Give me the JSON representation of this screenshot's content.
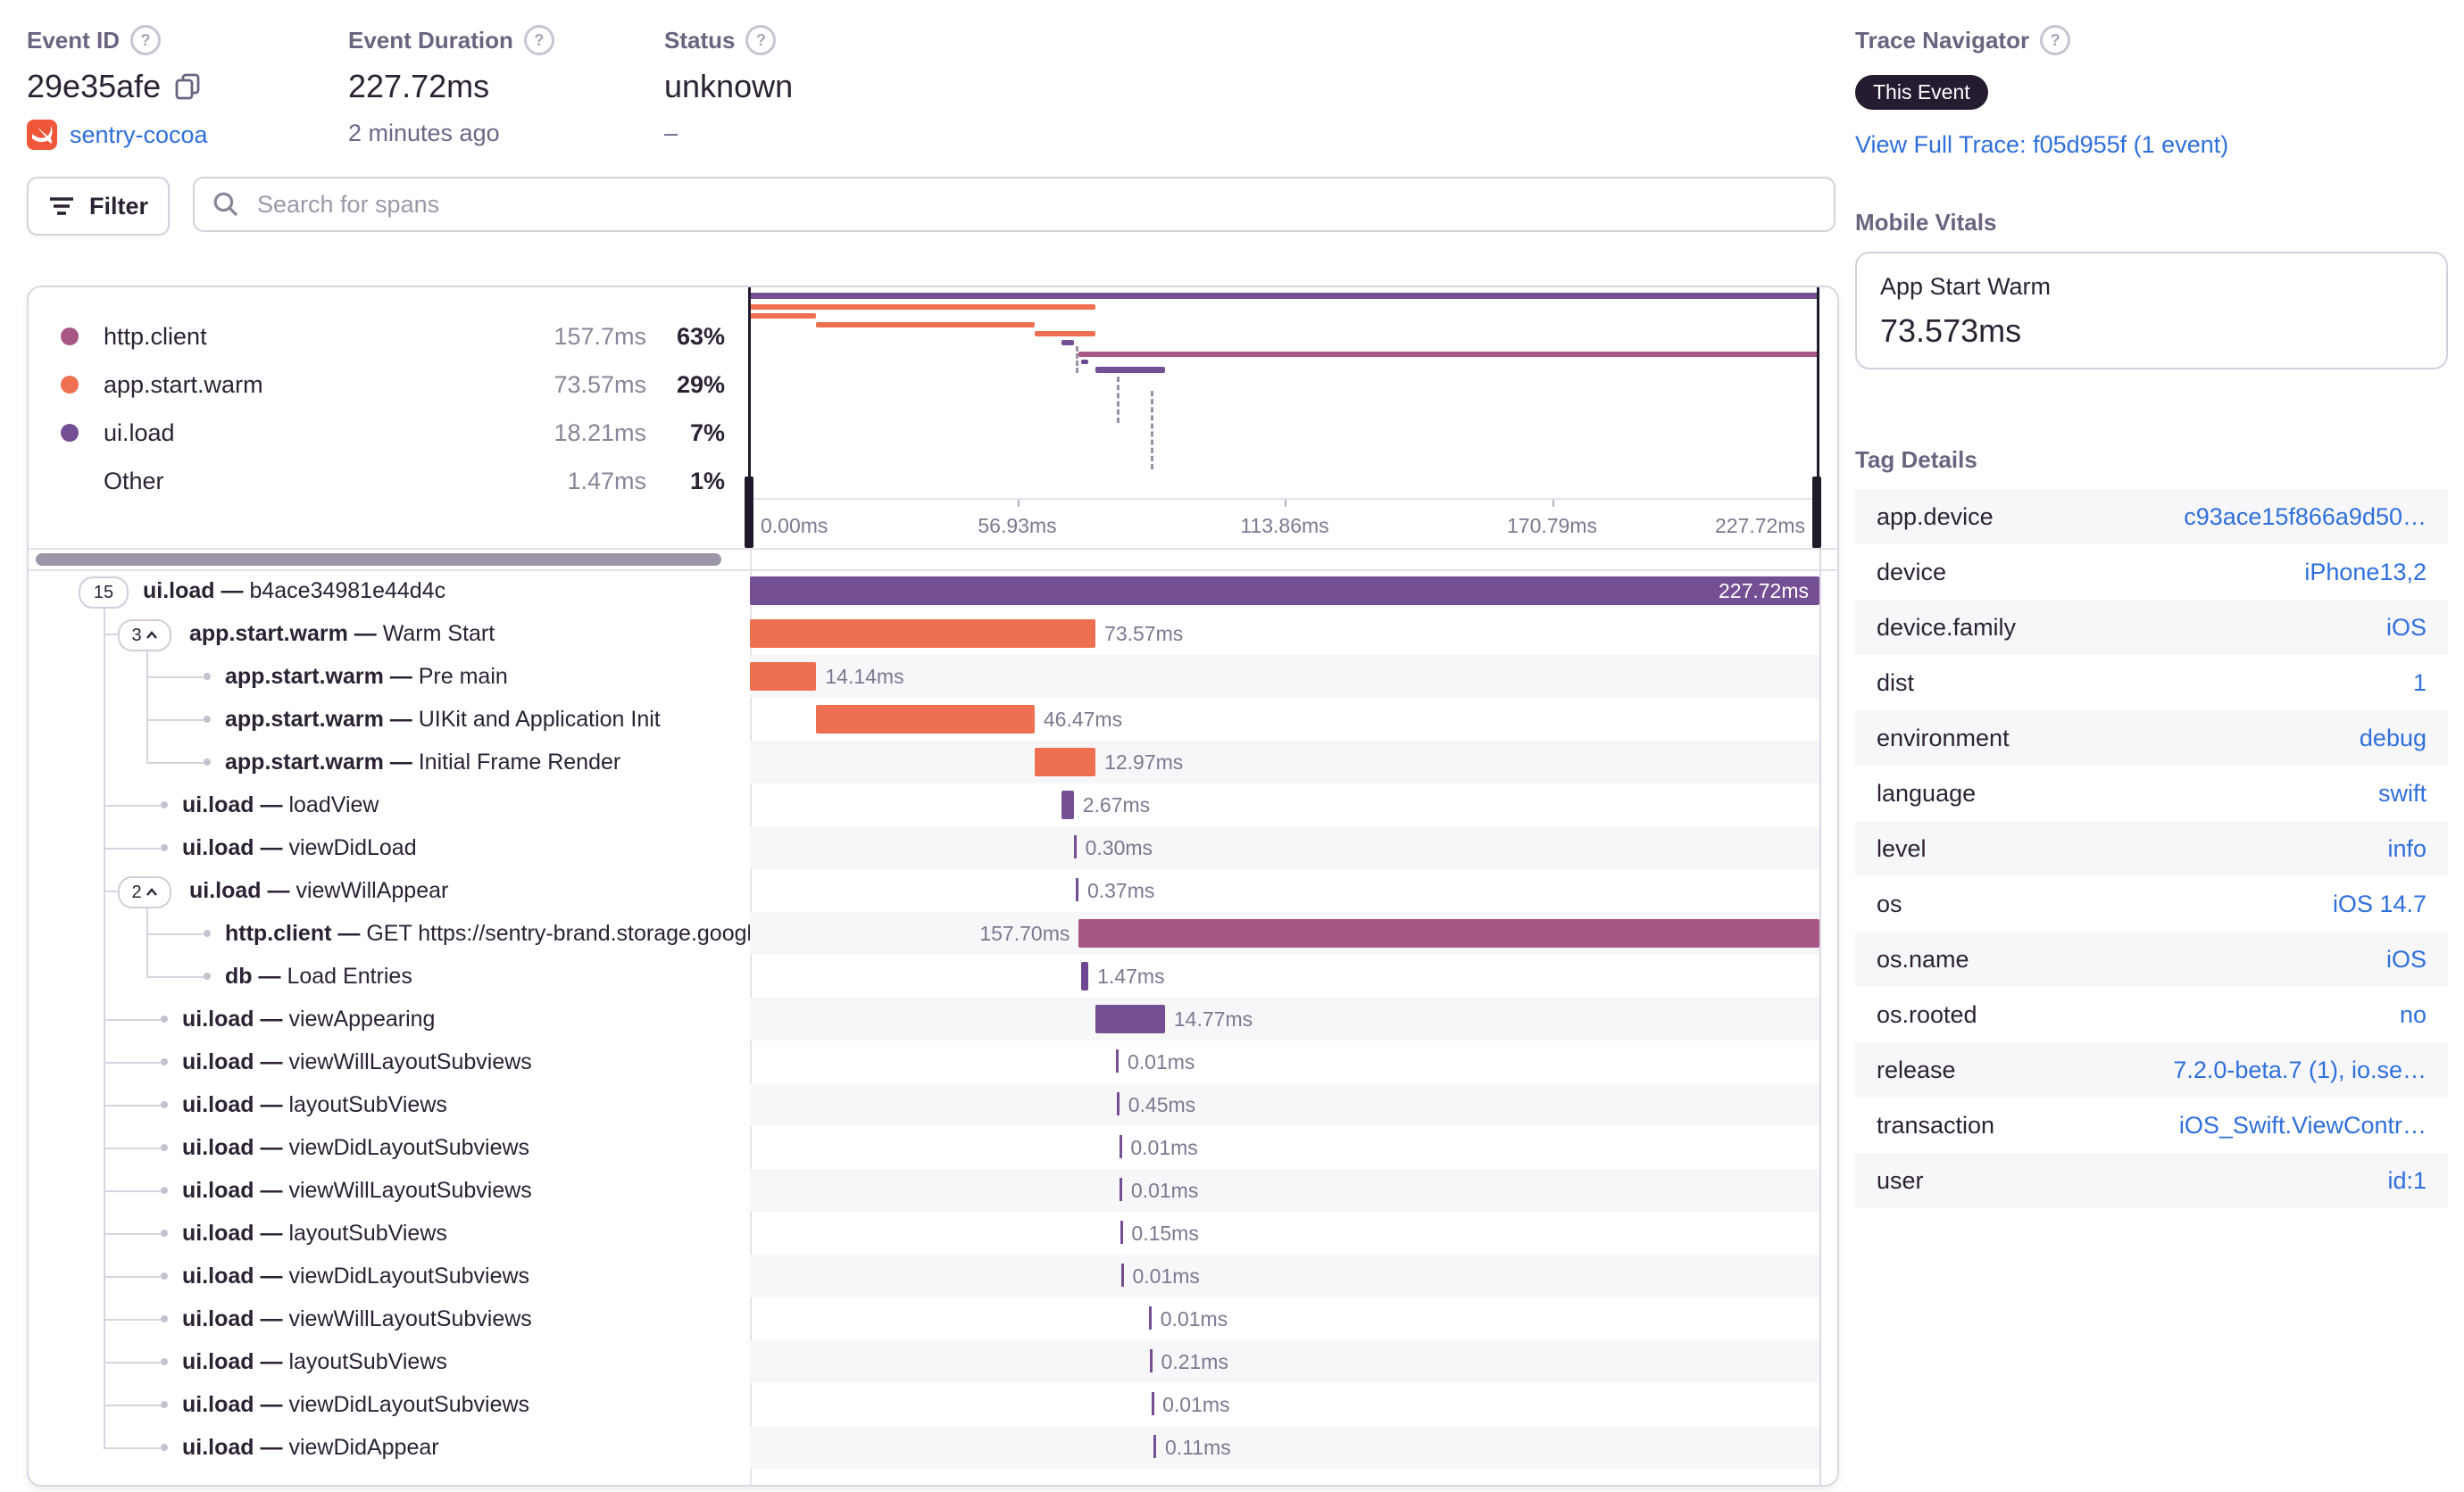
{
  "header": {
    "event": {
      "label": "Event ID",
      "value": "29e35afe",
      "project": "sentry-cocoa"
    },
    "duration": {
      "label": "Event Duration",
      "value": "227.72ms",
      "ago": "2 minutes ago"
    },
    "status": {
      "label": "Status",
      "value": "unknown",
      "sub": "–"
    },
    "trace": {
      "label": "Trace Navigator",
      "badge": "This Event",
      "link": "View Full Trace: f05d955f (1 event)"
    }
  },
  "toolbar": {
    "filter": "Filter",
    "search_placeholder": "Search for spans"
  },
  "summary": [
    {
      "op": "http.client",
      "duration": "157.7ms",
      "pct": "63%",
      "kind": "http"
    },
    {
      "op": "app.start.warm",
      "duration": "73.57ms",
      "pct": "29%",
      "kind": "app"
    },
    {
      "op": "ui.load",
      "duration": "18.21ms",
      "pct": "7%",
      "kind": "ui"
    },
    {
      "op": "Other",
      "duration": "1.47ms",
      "pct": "1%",
      "kind": "none"
    }
  ],
  "axis_labels": [
    "0.00ms",
    "56.93ms",
    "113.86ms",
    "170.79ms",
    "227.72ms"
  ],
  "total_ms": 227.72,
  "spans": [
    {
      "op": "ui.load",
      "desc": "b4ace34981e44d4c",
      "duration": "227.72ms",
      "start": 0,
      "ms": 227.72,
      "kind": "ui",
      "depth": 0,
      "badge": "15",
      "chevron": false,
      "label": "inside"
    },
    {
      "op": "app.start.warm",
      "desc": "Warm Start",
      "duration": "73.57ms",
      "start": 0,
      "ms": 73.57,
      "kind": "app",
      "depth": 1,
      "badge": "3",
      "chevron": true
    },
    {
      "op": "app.start.warm",
      "desc": "Pre main",
      "duration": "14.14ms",
      "start": 0,
      "ms": 14.14,
      "kind": "app",
      "depth": 2
    },
    {
      "op": "app.start.warm",
      "desc": "UIKit and Application Init",
      "duration": "46.47ms",
      "start": 14.14,
      "ms": 46.47,
      "kind": "app",
      "depth": 2
    },
    {
      "op": "app.start.warm",
      "desc": "Initial Frame Render",
      "duration": "12.97ms",
      "start": 60.61,
      "ms": 12.97,
      "kind": "app",
      "depth": 2
    },
    {
      "op": "ui.load",
      "desc": "loadView",
      "duration": "2.67ms",
      "start": 66.28,
      "ms": 2.67,
      "kind": "ui",
      "depth": 1
    },
    {
      "op": "ui.load",
      "desc": "viewDidLoad",
      "duration": "0.30ms",
      "start": 69.0,
      "ms": 0.3,
      "kind": "ui",
      "depth": 1
    },
    {
      "op": "ui.load",
      "desc": "viewWillAppear",
      "duration": "0.37ms",
      "start": 69.45,
      "ms": 0.37,
      "kind": "ui",
      "depth": 1,
      "badge": "2",
      "chevron": true
    },
    {
      "op": "http.client",
      "desc": "GET https://sentry-brand.storage.googlea",
      "duration": "157.70ms",
      "start": 70.02,
      "ms": 157.7,
      "kind": "http",
      "depth": 2,
      "label": "left"
    },
    {
      "op": "db",
      "desc": "Load Entries",
      "duration": "1.47ms",
      "start": 70.6,
      "ms": 1.47,
      "kind": "db",
      "depth": 2
    },
    {
      "op": "ui.load",
      "desc": "viewAppearing",
      "duration": "14.77ms",
      "start": 73.6,
      "ms": 14.77,
      "kind": "ui",
      "depth": 1
    },
    {
      "op": "ui.load",
      "desc": "viewWillLayoutSubviews",
      "duration": "0.01ms",
      "start": 78.0,
      "ms": 0.01,
      "kind": "ui",
      "depth": 1
    },
    {
      "op": "ui.load",
      "desc": "layoutSubViews",
      "duration": "0.45ms",
      "start": 78.15,
      "ms": 0.45,
      "kind": "ui",
      "depth": 1
    },
    {
      "op": "ui.load",
      "desc": "viewDidLayoutSubviews",
      "duration": "0.01ms",
      "start": 78.65,
      "ms": 0.01,
      "kind": "ui",
      "depth": 1
    },
    {
      "op": "ui.load",
      "desc": "viewWillLayoutSubviews",
      "duration": "0.01ms",
      "start": 78.75,
      "ms": 0.01,
      "kind": "ui",
      "depth": 1
    },
    {
      "op": "ui.load",
      "desc": "layoutSubViews",
      "duration": "0.15ms",
      "start": 78.85,
      "ms": 0.15,
      "kind": "ui",
      "depth": 1
    },
    {
      "op": "ui.load",
      "desc": "viewDidLayoutSubviews",
      "duration": "0.01ms",
      "start": 79.05,
      "ms": 0.01,
      "kind": "ui",
      "depth": 1
    },
    {
      "op": "ui.load",
      "desc": "viewWillLayoutSubviews",
      "duration": "0.01ms",
      "start": 85.0,
      "ms": 0.01,
      "kind": "ui",
      "depth": 1
    },
    {
      "op": "ui.load",
      "desc": "layoutSubViews",
      "duration": "0.21ms",
      "start": 85.15,
      "ms": 0.21,
      "kind": "ui",
      "depth": 1
    },
    {
      "op": "ui.load",
      "desc": "viewDidLayoutSubviews",
      "duration": "0.01ms",
      "start": 85.45,
      "ms": 0.01,
      "kind": "ui",
      "depth": 1
    },
    {
      "op": "ui.load",
      "desc": "viewDidAppear",
      "duration": "0.11ms",
      "start": 86.0,
      "ms": 0.11,
      "kind": "ui",
      "depth": 1
    }
  ],
  "sidebar": {
    "vitals": {
      "title": "Mobile Vitals",
      "metric": "App Start Warm",
      "value": "73.573ms"
    },
    "tags": {
      "title": "Tag Details",
      "rows": [
        {
          "key": "app.device",
          "value": "c93ace15f866a9d50…"
        },
        {
          "key": "device",
          "value": "iPhone13,2"
        },
        {
          "key": "device.family",
          "value": "iOS"
        },
        {
          "key": "dist",
          "value": "1"
        },
        {
          "key": "environment",
          "value": "debug"
        },
        {
          "key": "language",
          "value": "swift"
        },
        {
          "key": "level",
          "value": "info"
        },
        {
          "key": "os",
          "value": "iOS 14.7"
        },
        {
          "key": "os.name",
          "value": "iOS"
        },
        {
          "key": "os.rooted",
          "value": "no"
        },
        {
          "key": "release",
          "value": "7.2.0-beta.7 (1), io.se…"
        },
        {
          "key": "transaction",
          "value": "iOS_Swift.ViewContr…"
        },
        {
          "key": "user",
          "value": "id:1"
        }
      ]
    }
  },
  "colors": {
    "ui": "#754f93",
    "app": "#ee7051",
    "http": "#a85685",
    "db": "#6d4890",
    "none": "transparent",
    "link": "#2f6fdb",
    "stripe": "#f7f7f9"
  }
}
